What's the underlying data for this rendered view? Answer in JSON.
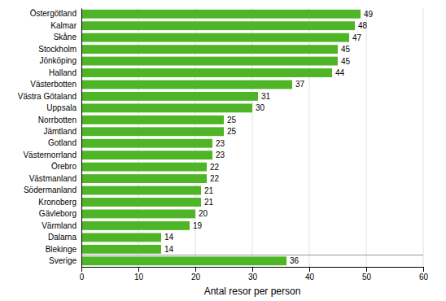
{
  "chart_data": {
    "type": "bar",
    "orientation": "horizontal",
    "categories": [
      "Sverige",
      "Blekinge",
      "Dalarna",
      "Värmland",
      "Gävleborg",
      "Kronoberg",
      "Södermanland",
      "Västmanland",
      "Örebro",
      "Västernorrland",
      "Gotland",
      "Jämtland",
      "Norrbotten",
      "Uppsala",
      "Västra Götaland",
      "Västerbotten",
      "Halland",
      "Jönköping",
      "Stockholm",
      "Skåne",
      "Kalmar",
      "Östergötland"
    ],
    "values": [
      36,
      14,
      14,
      19,
      20,
      21,
      21,
      22,
      22,
      23,
      23,
      25,
      25,
      30,
      31,
      37,
      44,
      45,
      45,
      47,
      48,
      49
    ],
    "color": "#4db526",
    "xlabel": "Antal resor per person",
    "xlim": [
      0,
      60
    ],
    "xticks": [
      0,
      10,
      20,
      30,
      40,
      50,
      60
    ],
    "grid": true,
    "data_labels": true
  }
}
